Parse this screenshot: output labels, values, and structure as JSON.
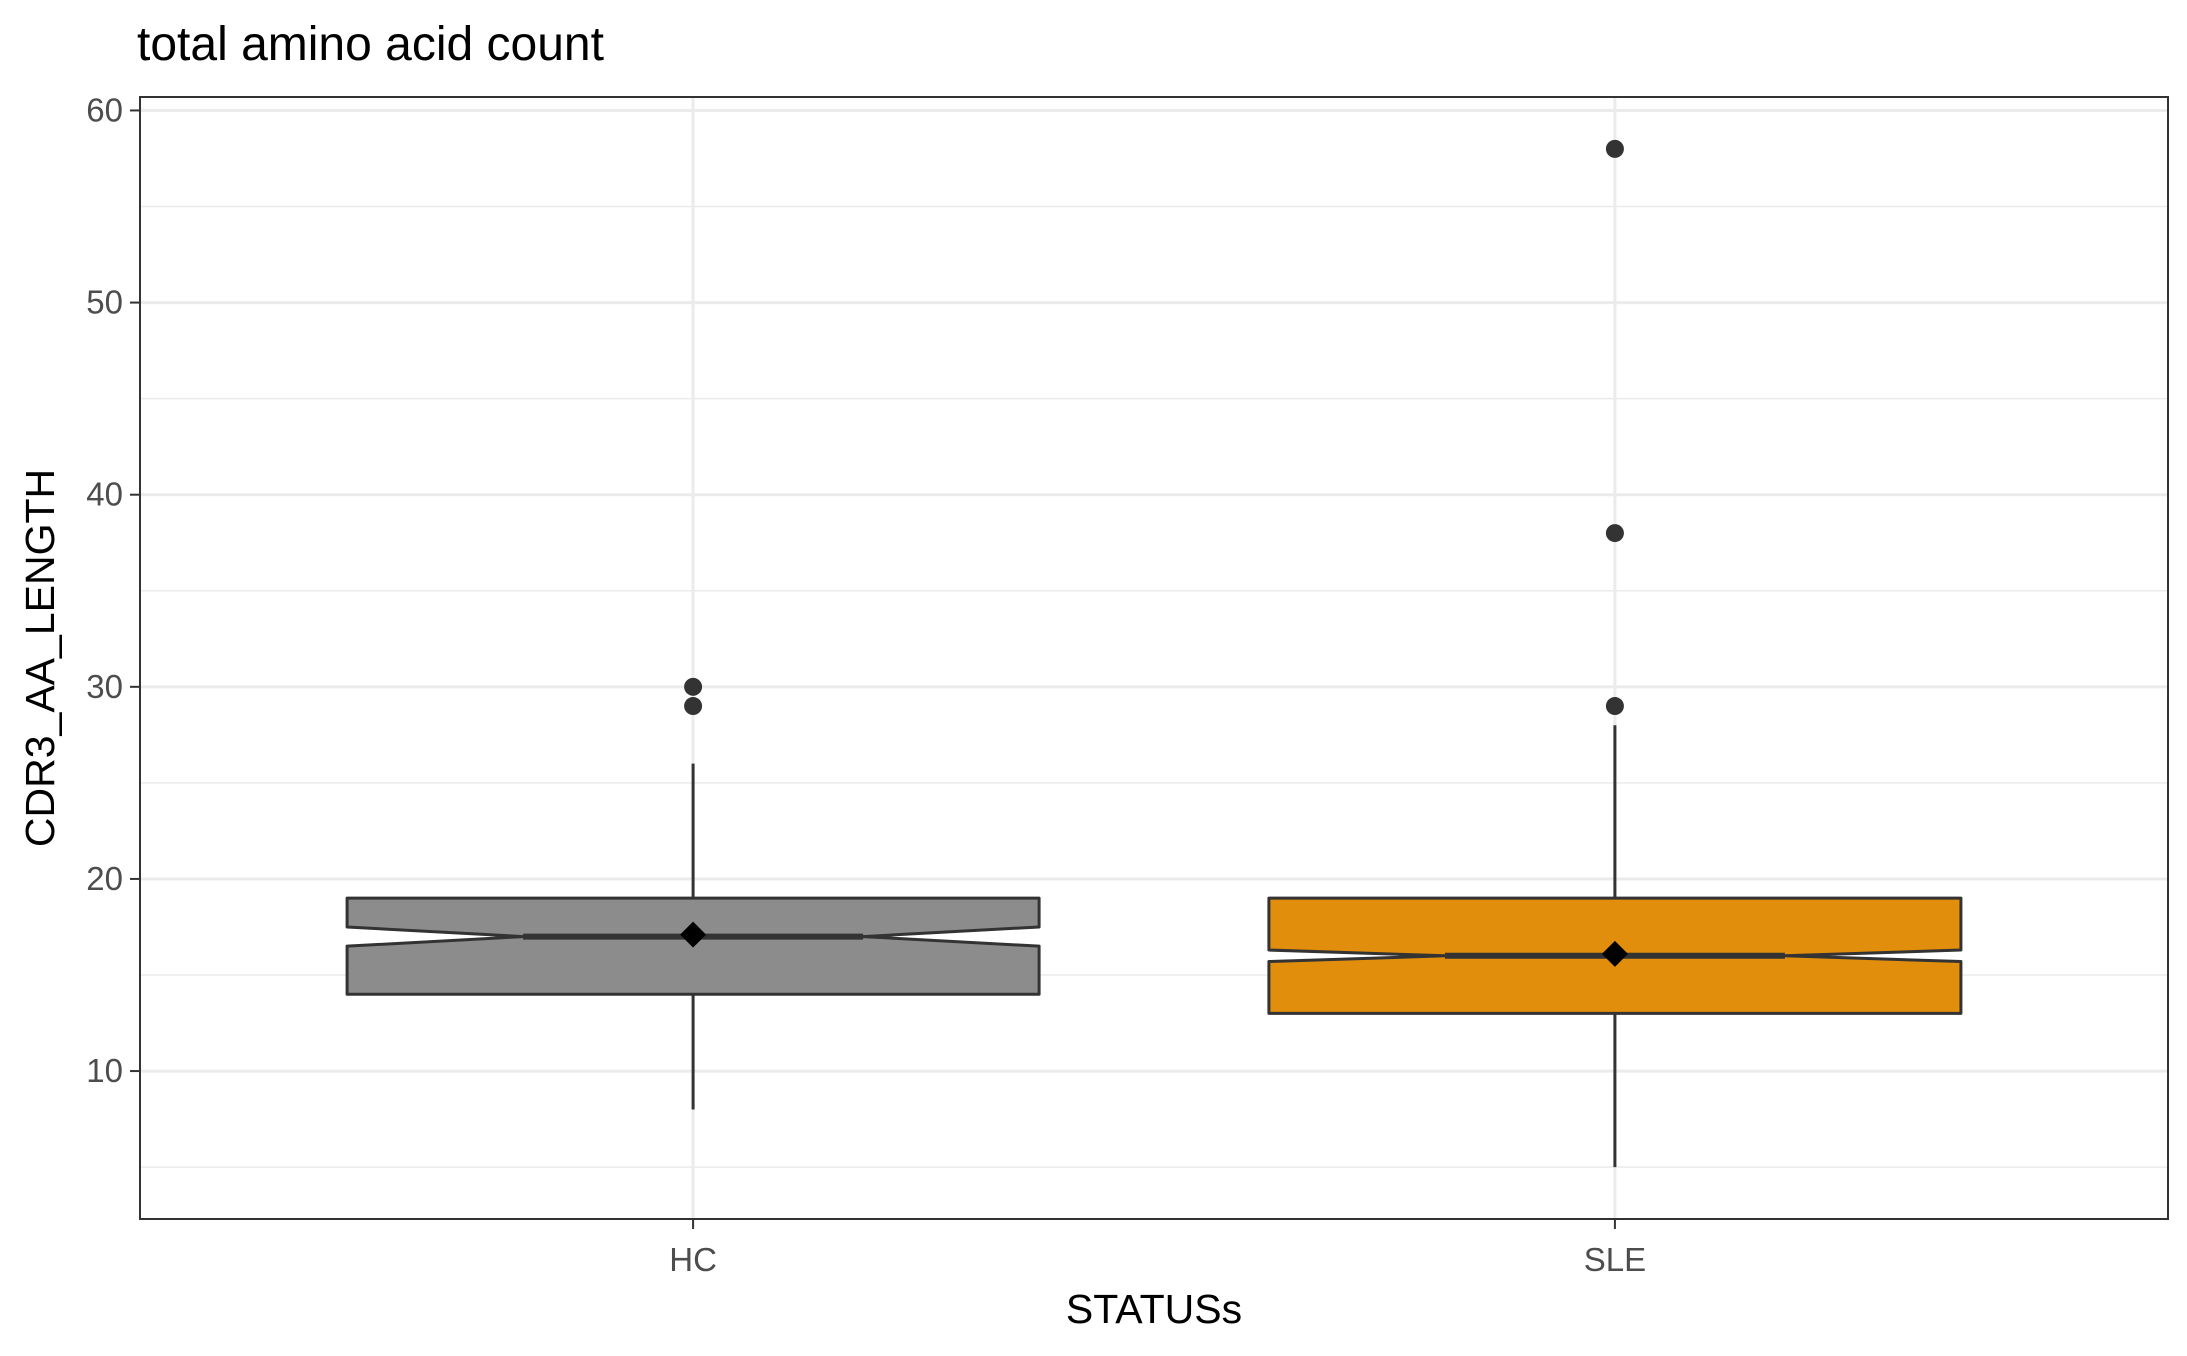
{
  "chart_data": {
    "type": "boxplot",
    "title": "total amino acid count",
    "xlabel": "STATUSs",
    "ylabel": "CDR3_AA_LENGTH",
    "ylim": [
      2.3,
      60.7
    ],
    "yticks": [
      10,
      20,
      30,
      40,
      50,
      60
    ],
    "y_minor_ticks": [
      5,
      15,
      25,
      35,
      45,
      55
    ],
    "grid": true,
    "notched": true,
    "categories": [
      "HC",
      "SLE"
    ],
    "boxes": [
      {
        "category": "HC",
        "color": "#8c8c8c",
        "q1": 14,
        "median": 17,
        "q3": 19,
        "notch_low": 16.5,
        "notch_high": 17.5,
        "whisker_low": 8,
        "whisker_high": 26,
        "mean": 17.1,
        "outliers": [
          29,
          30
        ]
      },
      {
        "category": "SLE",
        "color": "#e08e0b",
        "q1": 13,
        "median": 16,
        "q3": 19,
        "notch_low": 15.7,
        "notch_high": 16.3,
        "whisker_low": 5,
        "whisker_high": 28,
        "mean": 16.1,
        "outliers": [
          29,
          38,
          58
        ]
      }
    ]
  }
}
